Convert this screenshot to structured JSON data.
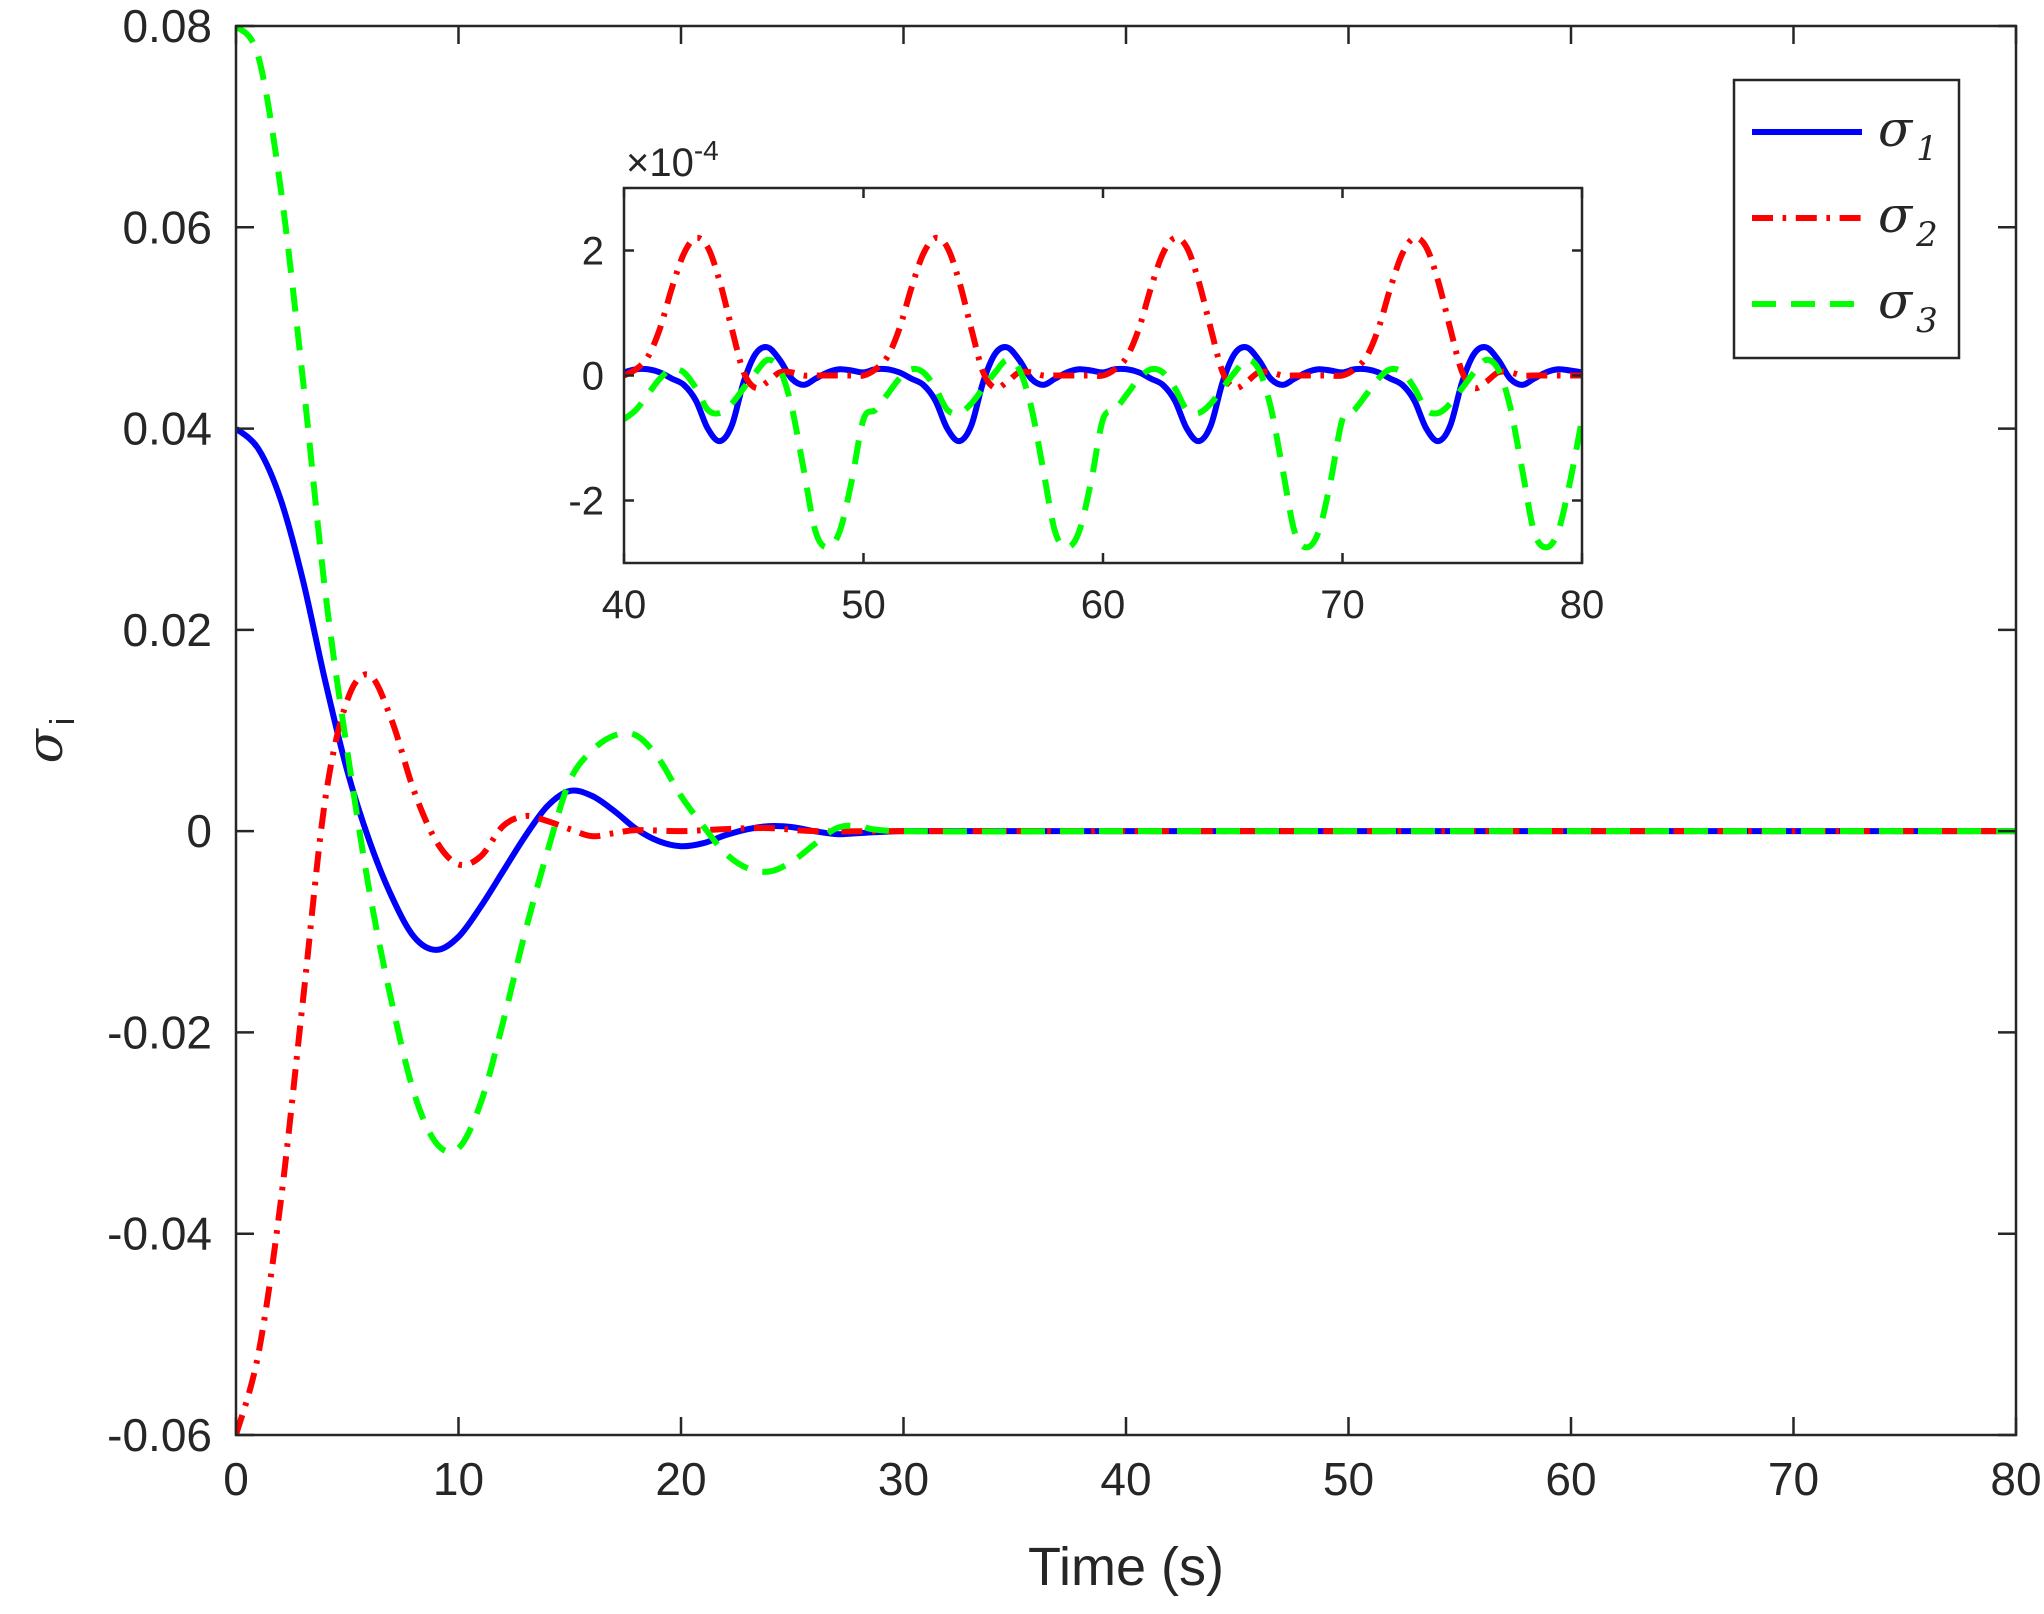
{
  "chart_data": [
    {
      "id": "main",
      "type": "line",
      "xlabel": "Time (s)",
      "ylabel_symbol": "σ",
      "ylabel_subscript": "i",
      "xlim": [
        0,
        80
      ],
      "ylim": [
        -0.06,
        0.08
      ],
      "xticks": [
        0,
        10,
        20,
        30,
        40,
        50,
        60,
        70,
        80
      ],
      "xtick_labels": [
        "0",
        "10",
        "20",
        "30",
        "40",
        "50",
        "60",
        "70",
        "80"
      ],
      "yticks": [
        -0.06,
        -0.04,
        -0.02,
        0,
        0.02,
        0.04,
        0.06,
        0.08
      ],
      "ytick_labels": [
        "-0.06",
        "-0.04",
        "-0.02",
        "0",
        "0.02",
        "0.04",
        "0.06",
        "0.08"
      ],
      "legend": {
        "position": "top-right",
        "entries": [
          {
            "symbol": "σ",
            "subscript": "1",
            "color": "#0000ff",
            "style": "solid"
          },
          {
            "symbol": "σ",
            "subscript": "2",
            "color": "#ff0000",
            "style": "dash-dot"
          },
          {
            "symbol": "σ",
            "subscript": "3",
            "color": "#00ff00",
            "style": "dashed"
          }
        ]
      },
      "series": [
        {
          "name": "σ1",
          "color": "#0000ff",
          "style": "solid",
          "x": [
            0,
            1,
            2,
            3,
            4,
            5,
            6,
            7,
            8,
            9,
            10,
            11,
            12,
            13,
            14,
            15,
            16,
            17,
            18,
            19,
            20,
            21,
            22,
            23,
            24,
            25,
            26,
            27,
            28,
            30,
            35,
            40,
            50,
            60,
            70,
            80
          ],
          "y": [
            0.04,
            0.038,
            0.033,
            0.025,
            0.015,
            0.006,
            -0.001,
            -0.0065,
            -0.0105,
            -0.0118,
            -0.0105,
            -0.0075,
            -0.004,
            -0.0005,
            0.0025,
            0.004,
            0.0035,
            0.002,
            0.0002,
            -0.001,
            -0.0015,
            -0.0012,
            -0.0004,
            0.0002,
            0.0005,
            0.0004,
            0.0,
            -0.0003,
            -0.0002,
            0.0,
            0.0,
            0.0,
            0.0,
            0.0,
            0.0,
            0.0
          ]
        },
        {
          "name": "σ2",
          "color": "#ff0000",
          "style": "dash-dot",
          "x": [
            0,
            1,
            2,
            3,
            4,
            5,
            6,
            7,
            8,
            9,
            10,
            11,
            12,
            13,
            14,
            15,
            16,
            17,
            18,
            20,
            22,
            24,
            26,
            30,
            40,
            50,
            60,
            70,
            80
          ],
          "y": [
            -0.06,
            -0.052,
            -0.037,
            -0.017,
            0.003,
            0.013,
            0.0155,
            0.011,
            0.004,
            -0.001,
            -0.0033,
            -0.0025,
            0.0005,
            0.0015,
            0.001,
            0.0002,
            -0.0005,
            -0.0002,
            0.0001,
            0.0,
            0.0002,
            0.0003,
            0.0,
            0.0,
            0.0,
            0.0,
            0.0,
            0.0,
            0.0
          ]
        },
        {
          "name": "σ3",
          "color": "#00ff00",
          "style": "dashed",
          "x": [
            0,
            1,
            2,
            3,
            4,
            5,
            6,
            7,
            8,
            9,
            10,
            11,
            12,
            13,
            14,
            15,
            16,
            17,
            18,
            19,
            20,
            21,
            22,
            23,
            24,
            25,
            26,
            27,
            28,
            30,
            40,
            50,
            60,
            70,
            80
          ],
          "y": [
            0.08,
            0.077,
            0.064,
            0.045,
            0.024,
            0.008,
            -0.006,
            -0.017,
            -0.026,
            -0.031,
            -0.0315,
            -0.027,
            -0.019,
            -0.01,
            -0.002,
            0.005,
            0.008,
            0.0095,
            0.0095,
            0.0072,
            0.0035,
            0.0005,
            -0.0022,
            -0.0037,
            -0.004,
            -0.003,
            -0.0013,
            0.0003,
            0.0005,
            0.0,
            0.0,
            0.0,
            0.0,
            0.0,
            0.0
          ]
        }
      ]
    },
    {
      "id": "inset",
      "type": "line",
      "xlim": [
        40,
        80
      ],
      "ylim": [
        -3,
        3
      ],
      "scale_label_prefix": "×10",
      "scale_label_exponent": "-4",
      "xticks": [
        40,
        50,
        60,
        70,
        80
      ],
      "xtick_labels": [
        "40",
        "50",
        "60",
        "70",
        "80"
      ],
      "yticks": [
        -2,
        0,
        2
      ],
      "ytick_labels": [
        "-2",
        "0",
        "2"
      ],
      "period": 10,
      "series": [
        {
          "name": "σ1",
          "color": "#0000ff",
          "style": "solid",
          "x_period": [
            0,
            0.5,
            1,
            1.5,
            2,
            2.5,
            3,
            3.5,
            4,
            4.5,
            5,
            5.5,
            6,
            6.5,
            7,
            7.5,
            8,
            8.5,
            9,
            9.5,
            10
          ],
          "y_period": [
            0.05,
            0.1,
            0.1,
            0.05,
            -0.05,
            -0.15,
            -0.4,
            -0.85,
            -1.05,
            -0.8,
            -0.1,
            0.35,
            0.45,
            0.25,
            -0.05,
            -0.15,
            -0.05,
            0.05,
            0.1,
            0.08,
            0.05
          ]
        },
        {
          "name": "σ2",
          "color": "#ff0000",
          "style": "dash-dot",
          "x_period": [
            0,
            0.5,
            1,
            1.5,
            2,
            2.5,
            3,
            3.5,
            4,
            4.5,
            5,
            5.5,
            6,
            6.5,
            7,
            7.5,
            8,
            8.5,
            9,
            9.5,
            10
          ],
          "y_period": [
            0,
            0.1,
            0.3,
            0.75,
            1.4,
            1.95,
            2.2,
            2.05,
            1.5,
            0.75,
            0.05,
            -0.2,
            -0.1,
            0.05,
            0.05,
            0,
            0,
            0,
            0,
            0,
            0
          ]
        },
        {
          "name": "σ3",
          "color": "#00ff00",
          "style": "dashed",
          "x_period": [
            0,
            0.5,
            1,
            1.5,
            2,
            2.5,
            3,
            3.5,
            4,
            4.5,
            5,
            5.5,
            6,
            6.5,
            7,
            7.5,
            8,
            8.5,
            9,
            9.5,
            10
          ],
          "y_period": [
            -0.7,
            -0.55,
            -0.3,
            -0.05,
            0.1,
            0.05,
            -0.2,
            -0.55,
            -0.6,
            -0.45,
            -0.2,
            0.05,
            0.25,
            0.1,
            -0.5,
            -1.5,
            -2.5,
            -2.75,
            -2.5,
            -1.7,
            -0.7
          ]
        }
      ]
    }
  ]
}
